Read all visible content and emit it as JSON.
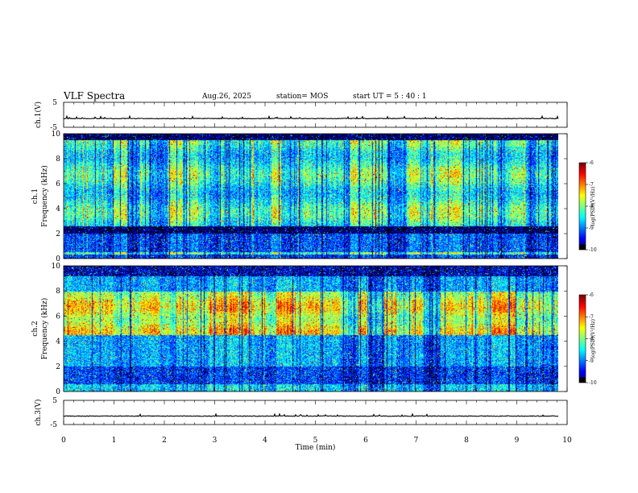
{
  "header": {
    "title": "VLF Spectra",
    "date": "Aug.26, 2025",
    "station": "station= MOS",
    "start": "start UT =  5 : 40 : 1"
  },
  "chart_data": [
    {
      "type": "line",
      "name": "ch1-waveform",
      "ylabel": "ch.1(V)",
      "ylim": [
        -5,
        5
      ],
      "yticks": [
        "5",
        "-5"
      ],
      "baseline_value": -1.5
    },
    {
      "type": "heatmap",
      "name": "ch1-spectrogram",
      "ylabel": "ch.1\nFrequency (kHz)",
      "ylabel_line1": "ch.1",
      "ylabel_line2": "Frequency (kHz)",
      "ylim": [
        0,
        10
      ],
      "yticks": [
        "0",
        "2",
        "4",
        "6",
        "8",
        "10"
      ],
      "colorbar": {
        "label": "log(PSD)(V²/Hz)",
        "range": [
          -10,
          -6
        ],
        "ticks": [
          "-6",
          "-7",
          "-8",
          "-9",
          "-10"
        ]
      },
      "dominant_band_khz": [
        2.5,
        9.5
      ]
    },
    {
      "type": "heatmap",
      "name": "ch2-spectrogram",
      "ylabel_line1": "ch.2",
      "ylabel_line2": "Frequency (kHz)",
      "ylim": [
        0,
        10
      ],
      "yticks": [
        "0",
        "2",
        "4",
        "6",
        "8",
        "10"
      ],
      "colorbar": {
        "label": "log(PSD)(V²/Hz)",
        "range": [
          -10,
          -6
        ],
        "ticks": [
          "-6",
          "-7",
          "-8",
          "-9",
          "-10"
        ]
      },
      "dominant_band_khz": [
        4.5,
        8
      ]
    },
    {
      "type": "line",
      "name": "ch3-waveform",
      "ylabel": "ch.3(V)",
      "ylim": [
        -5,
        5
      ],
      "yticks": [
        "5",
        "-5"
      ],
      "baseline_value": -1.5
    }
  ],
  "x_axis": {
    "label": "Time  (min)",
    "range": [
      0,
      10
    ],
    "ticks": [
      "0",
      "1",
      "2",
      "3",
      "4",
      "5",
      "6",
      "7",
      "8",
      "9",
      "10"
    ],
    "data_end_min": 9.83
  }
}
